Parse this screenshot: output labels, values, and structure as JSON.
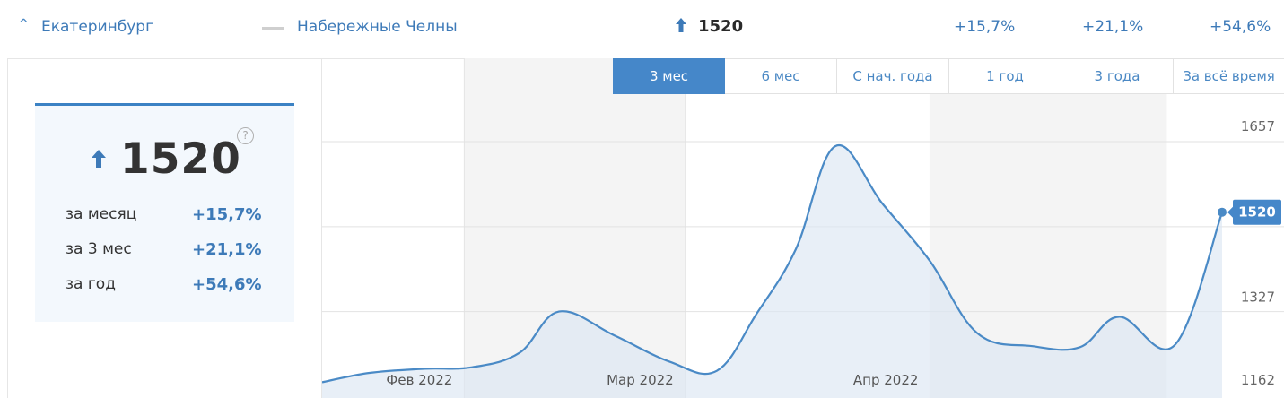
{
  "compare": {
    "chevron": "^",
    "city_primary": "Екатеринбург",
    "city_secondary": "Набережные Челны",
    "value": "1520",
    "changes": [
      "+15,7%",
      "+21,1%",
      "+54,6%"
    ]
  },
  "card": {
    "value": "1520",
    "help": "?",
    "stats": [
      {
        "label": "за месяц",
        "value": "+15,7%"
      },
      {
        "label": "за 3 мес",
        "value": "+21,1%"
      },
      {
        "label": "за год",
        "value": "+54,6%"
      }
    ]
  },
  "tabs": [
    "3 мес",
    "6 мес",
    "С нач. года",
    "1 год",
    "3 года",
    "За всё время"
  ],
  "active_tab": 0,
  "colors": {
    "accent": "#4587c9",
    "line": "#4a8ac6",
    "fill": "#dbe7f3",
    "link": "#3d7ab8"
  },
  "chart_data": {
    "type": "area",
    "months": [
      "Фев 2022",
      "Мар 2022",
      "Апр 2022"
    ],
    "y_ticks": [
      1657,
      1327,
      1162
    ],
    "ylim": [
      1162,
      1657
    ],
    "last_value_label": "1520",
    "points": [
      {
        "date": "2022-01-14",
        "value": 1190
      },
      {
        "date": "2022-01-20",
        "value": 1208
      },
      {
        "date": "2022-01-27",
        "value": 1216
      },
      {
        "date": "2022-02-02",
        "value": 1219
      },
      {
        "date": "2022-02-08",
        "value": 1247
      },
      {
        "date": "2022-02-13",
        "value": 1327
      },
      {
        "date": "2022-02-20",
        "value": 1281
      },
      {
        "date": "2022-02-27",
        "value": 1230
      },
      {
        "date": "2022-03-05",
        "value": 1212
      },
      {
        "date": "2022-03-10",
        "value": 1322
      },
      {
        "date": "2022-03-15",
        "value": 1448
      },
      {
        "date": "2022-03-20",
        "value": 1648
      },
      {
        "date": "2022-03-26",
        "value": 1536
      },
      {
        "date": "2022-04-01",
        "value": 1425
      },
      {
        "date": "2022-04-07",
        "value": 1285
      },
      {
        "date": "2022-04-14",
        "value": 1260
      },
      {
        "date": "2022-04-20",
        "value": 1258
      },
      {
        "date": "2022-04-25",
        "value": 1317
      },
      {
        "date": "2022-05-02",
        "value": 1262
      },
      {
        "date": "2022-05-08",
        "value": 1520
      }
    ]
  }
}
